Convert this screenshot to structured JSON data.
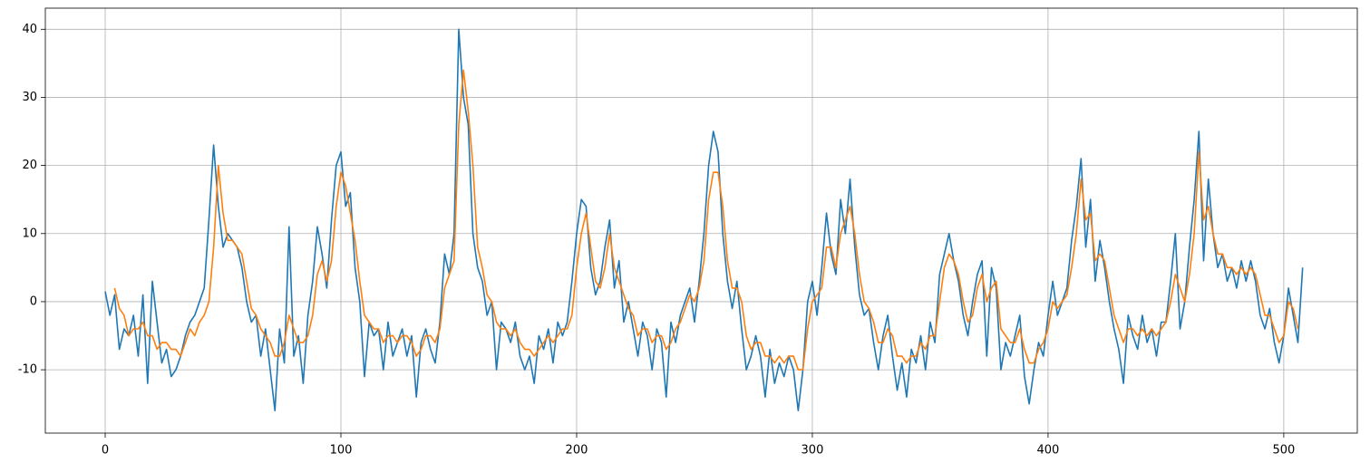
{
  "chart_data": {
    "type": "line",
    "x": [
      0,
      2,
      4,
      6,
      8,
      10,
      12,
      14,
      16,
      18,
      20,
      22,
      24,
      26,
      28,
      30,
      32,
      34,
      36,
      38,
      40,
      42,
      44,
      46,
      48,
      50,
      52,
      54,
      56,
      58,
      60,
      62,
      64,
      66,
      68,
      70,
      72,
      74,
      76,
      78,
      80,
      82,
      84,
      86,
      88,
      90,
      92,
      94,
      96,
      98,
      100,
      102,
      104,
      106,
      108,
      110,
      112,
      114,
      116,
      118,
      120,
      122,
      124,
      126,
      128,
      130,
      132,
      134,
      136,
      138,
      140,
      142,
      144,
      146,
      148,
      150,
      152,
      154,
      156,
      158,
      160,
      162,
      164,
      166,
      168,
      170,
      172,
      174,
      176,
      178,
      180,
      182,
      184,
      186,
      188,
      190,
      192,
      194,
      196,
      198,
      200,
      202,
      204,
      206,
      208,
      210,
      212,
      214,
      216,
      218,
      220,
      222,
      224,
      226,
      228,
      230,
      232,
      234,
      236,
      238,
      240,
      242,
      244,
      246,
      248,
      250,
      252,
      254,
      256,
      258,
      260,
      262,
      264,
      266,
      268,
      270,
      272,
      274,
      276,
      278,
      280,
      282,
      284,
      286,
      288,
      290,
      292,
      294,
      296,
      298,
      300,
      302,
      304,
      306,
      308,
      310,
      312,
      314,
      316,
      318,
      320,
      322,
      324,
      326,
      328,
      330,
      332,
      334,
      336,
      338,
      340,
      342,
      344,
      346,
      348,
      350,
      352,
      354,
      356,
      358,
      360,
      362,
      364,
      366,
      368,
      370,
      372,
      374,
      376,
      378,
      380,
      382,
      384,
      386,
      388,
      390,
      392,
      394,
      396,
      398,
      400,
      402,
      404,
      406,
      408,
      410,
      412,
      414,
      416,
      418,
      420,
      422,
      424,
      426,
      428,
      430,
      432,
      434,
      436,
      438,
      440,
      442,
      444,
      446,
      448,
      450,
      452,
      454,
      456,
      458,
      460,
      462,
      464,
      466,
      468,
      470,
      472,
      474,
      476,
      478,
      480,
      482,
      484,
      486,
      488,
      490,
      492,
      494,
      496,
      498,
      500,
      502,
      504,
      506,
      508
    ],
    "series": [
      {
        "color": "#1f77b4",
        "values": [
          1.5,
          -2,
          1,
          -7,
          -4,
          -5,
          -2,
          -8,
          1,
          -12,
          3,
          -3,
          -9,
          -7,
          -11,
          -10,
          -8,
          -5,
          -3,
          -2,
          0,
          2,
          12,
          23,
          14,
          8,
          10,
          9,
          8,
          5,
          0,
          -3,
          -2,
          -8,
          -4,
          -10,
          -16,
          -4,
          -9,
          11,
          -8,
          -5,
          -12,
          -2,
          3,
          11,
          7,
          2,
          12,
          20,
          22,
          14,
          16,
          5,
          0,
          -11,
          -3,
          -5,
          -4,
          -10,
          -3,
          -8,
          -6,
          -4,
          -8,
          -5,
          -14,
          -6,
          -4,
          -7,
          -9,
          -3,
          7,
          4,
          10,
          40,
          30,
          26,
          10,
          5,
          3,
          -2,
          0,
          -10,
          -3,
          -4,
          -6,
          -3,
          -8,
          -10,
          -8,
          -12,
          -5,
          -7,
          -4,
          -9,
          -3,
          -5,
          -3,
          3,
          10,
          15,
          14,
          5,
          1,
          3,
          8,
          12,
          2,
          6,
          -3,
          0,
          -4,
          -8,
          -3,
          -5,
          -10,
          -4,
          -6,
          -14,
          -3,
          -6,
          -2,
          0,
          2,
          -3,
          3,
          10,
          20,
          25,
          22,
          10,
          3,
          -1,
          3,
          -4,
          -10,
          -8,
          -5,
          -8,
          -14,
          -7,
          -12,
          -9,
          -11,
          -8,
          -10,
          -16,
          -10,
          0,
          3,
          -2,
          5,
          13,
          7,
          4,
          15,
          10,
          18,
          8,
          1,
          -2,
          -1,
          -6,
          -10,
          -5,
          -2,
          -8,
          -13,
          -9,
          -14,
          -7,
          -9,
          -5,
          -10,
          -3,
          -6,
          4,
          7,
          10,
          6,
          3,
          -2,
          -5,
          0,
          4,
          6,
          -8,
          5,
          2,
          -10,
          -6,
          -8,
          -5,
          -2,
          -11,
          -15,
          -10,
          -6,
          -8,
          -2,
          3,
          -2,
          0,
          2,
          9,
          14,
          21,
          8,
          15,
          3,
          9,
          5,
          0,
          -4,
          -7,
          -12,
          -2,
          -5,
          -7,
          -2,
          -6,
          -4,
          -8,
          -3,
          -3,
          3,
          10,
          -4,
          0,
          8,
          15,
          25,
          6,
          18,
          10,
          5,
          7,
          3,
          5,
          2,
          6,
          3,
          6,
          3,
          -2,
          -4,
          -1,
          -6,
          -9,
          -5,
          2,
          -2,
          -6,
          5
        ]
      },
      {
        "color": "#ff7f0e",
        "values": [
          null,
          null,
          2,
          -1,
          -2,
          -5,
          -4,
          -4,
          -3,
          -5,
          -5,
          -7,
          -6,
          -6,
          -7,
          -7,
          -8,
          -6,
          -4,
          -5,
          -3,
          -2,
          0,
          8,
          20,
          13,
          9,
          9,
          8,
          7,
          3,
          -1,
          -2,
          -4,
          -5,
          -6,
          -8,
          -8,
          -6,
          -2,
          -4,
          -6,
          -6,
          -5,
          -2,
          4,
          6,
          3,
          6,
          14,
          19,
          17,
          13,
          9,
          3,
          -2,
          -3,
          -4,
          -4,
          -6,
          -5,
          -5,
          -6,
          -5,
          -5,
          -6,
          -8,
          -7,
          -5,
          -5,
          -6,
          -4,
          2,
          4,
          6,
          26,
          34,
          28,
          20,
          8,
          5,
          1,
          0,
          -3,
          -4,
          -4,
          -5,
          -4,
          -6,
          -7,
          -7,
          -8,
          -7,
          -6,
          -5,
          -6,
          -5,
          -4,
          -4,
          -2,
          5,
          10,
          13,
          8,
          3,
          2,
          5,
          10,
          5,
          3,
          1,
          -1,
          -2,
          -5,
          -4,
          -4,
          -6,
          -5,
          -5,
          -7,
          -6,
          -4,
          -3,
          -1,
          1,
          0,
          2,
          6,
          15,
          19,
          19,
          14,
          6,
          2,
          2,
          0,
          -5,
          -7,
          -6,
          -6,
          -8,
          -8,
          -9,
          -8,
          -9,
          -8,
          -8,
          -10,
          -10,
          -4,
          0,
          1,
          2,
          8,
          8,
          5,
          10,
          12,
          14,
          10,
          4,
          0,
          -1,
          -3,
          -6,
          -6,
          -4,
          -5,
          -8,
          -8,
          -9,
          -8,
          -8,
          -6,
          -7,
          -5,
          -5,
          0,
          5,
          7,
          6,
          4,
          0,
          -3,
          -2,
          2,
          4,
          0,
          2,
          3,
          -4,
          -5,
          -6,
          -6,
          -4,
          -7,
          -9,
          -9,
          -7,
          -6,
          -4,
          0,
          -1,
          0,
          1,
          5,
          10,
          18,
          12,
          13,
          6,
          7,
          6,
          2,
          -2,
          -4,
          -6,
          -4,
          -4,
          -5,
          -4,
          -5,
          -4,
          -5,
          -4,
          -3,
          0,
          4,
          2,
          0,
          4,
          10,
          22,
          12,
          14,
          10,
          7,
          7,
          5,
          5,
          4,
          5,
          4,
          5,
          4,
          1,
          -2,
          -2,
          -4,
          -6,
          -5,
          0,
          -1,
          -4,
          null
        ]
      }
    ],
    "xlim": [
      -25.4,
      531.2
    ],
    "ylim": [
      -19.3,
      43.1
    ],
    "xticks": [
      0,
      100,
      200,
      300,
      400,
      500
    ],
    "yticks": [
      -10,
      0,
      10,
      20,
      30,
      40
    ],
    "grid": true
  }
}
